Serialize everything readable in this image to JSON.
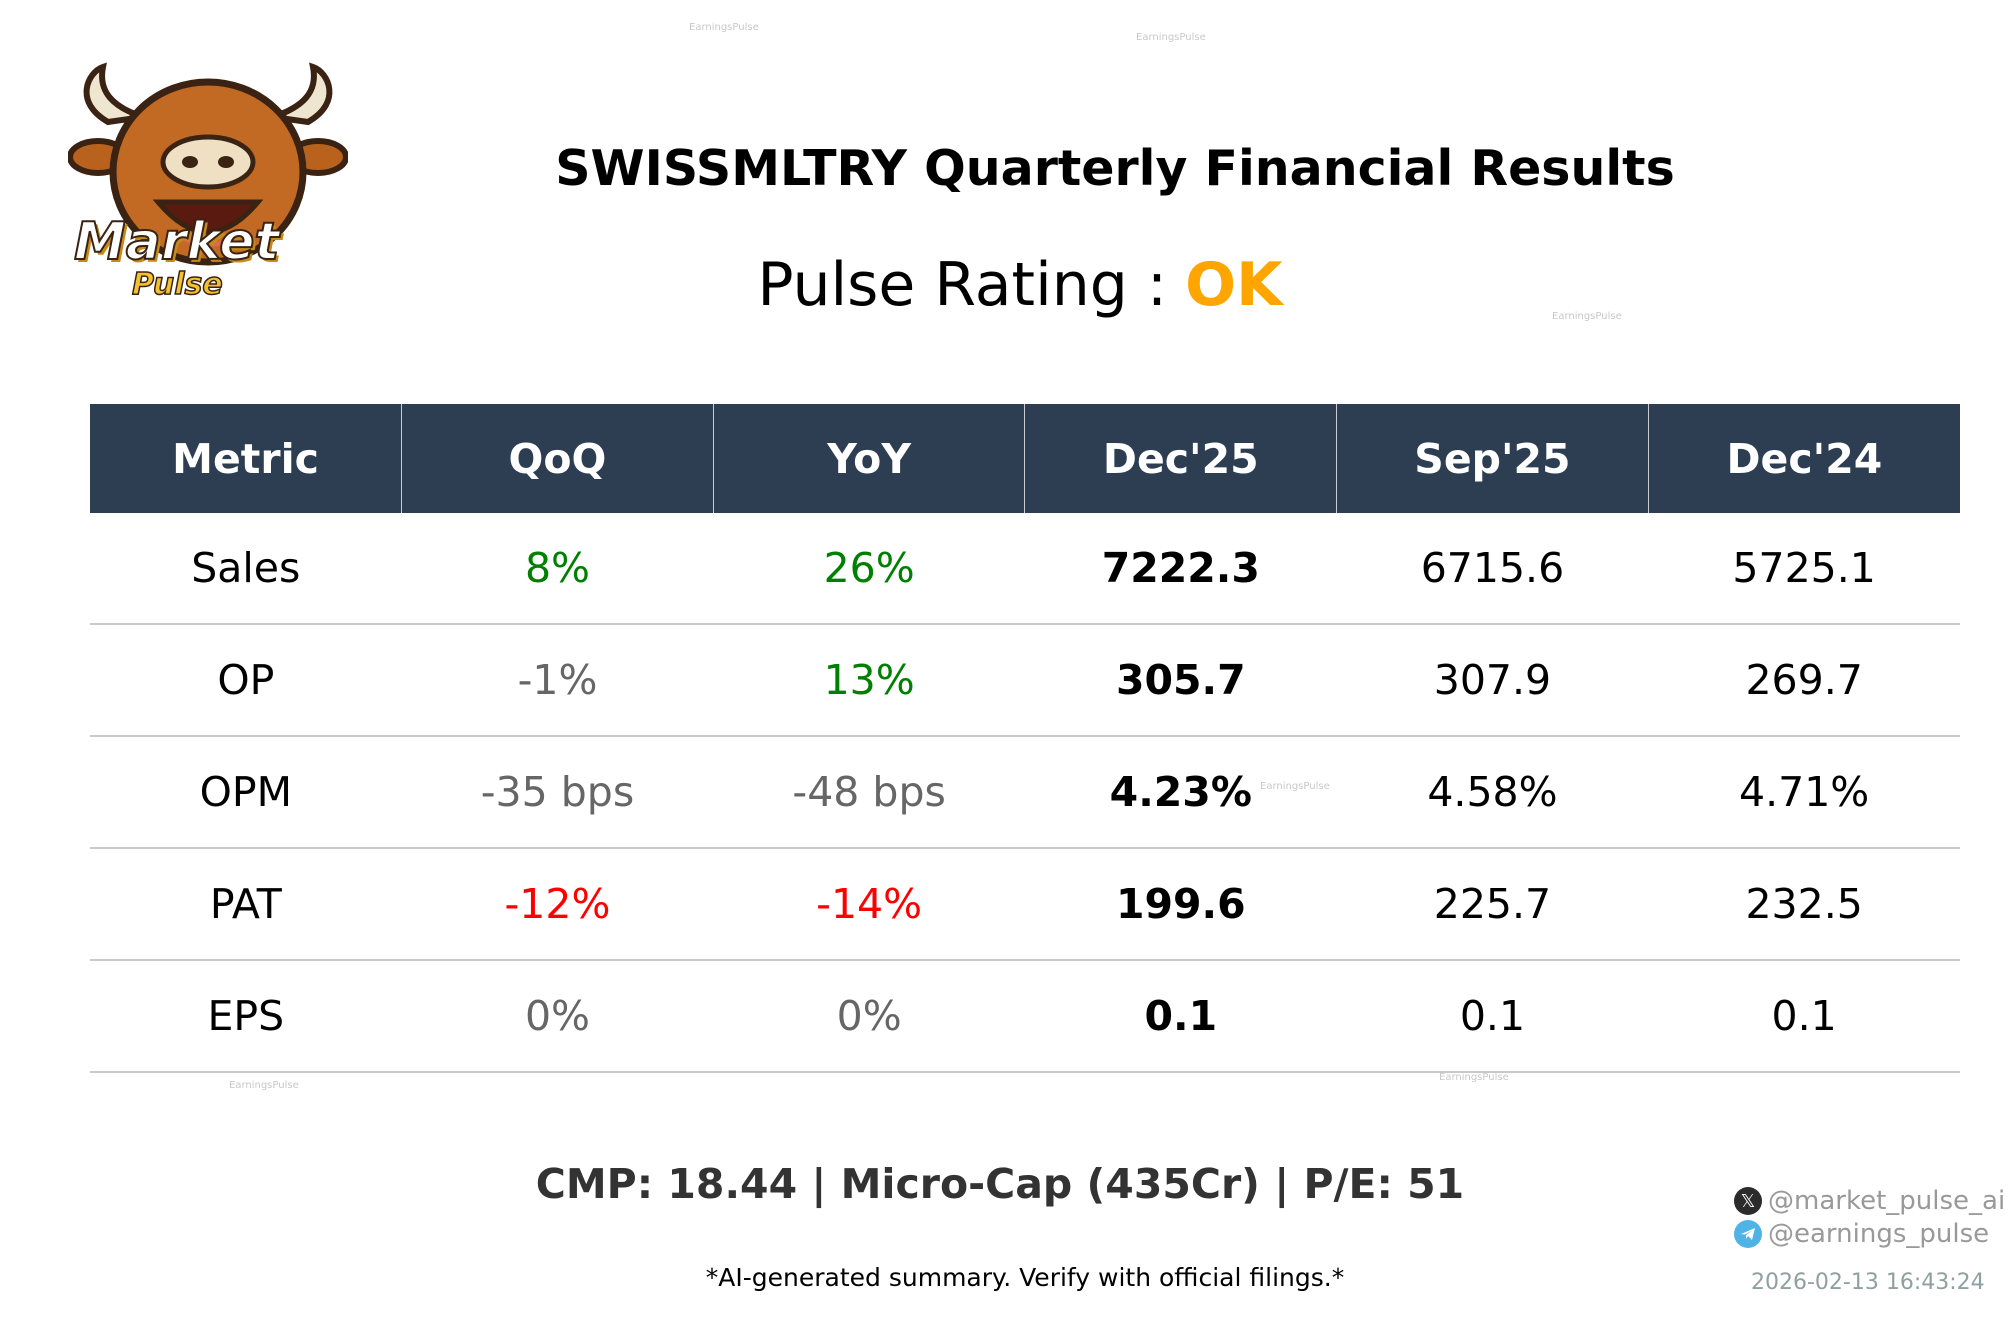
{
  "logo": {
    "text_line1": "Market",
    "text_line2": "Pulse"
  },
  "title": "SWISSMLTRY Quarterly Financial Results",
  "rating": {
    "label": "Pulse Rating :",
    "value": "OK",
    "color": "#FFA500"
  },
  "table": {
    "headers": [
      "Metric",
      "QoQ",
      "YoY",
      "Dec'25",
      "Sep'25",
      "Dec'24"
    ],
    "header_bg": "#2e3e52",
    "rows": [
      {
        "metric": "Sales",
        "qoq": "8%",
        "qoq_color": "#008000",
        "yoy": "26%",
        "yoy_color": "#008000",
        "dec25": "7222.3",
        "sep25": "6715.6",
        "dec24": "5725.1"
      },
      {
        "metric": "OP",
        "qoq": "-1%",
        "qoq_color": "#666666",
        "yoy": "13%",
        "yoy_color": "#008000",
        "dec25": "305.7",
        "sep25": "307.9",
        "dec24": "269.7"
      },
      {
        "metric": "OPM",
        "qoq": "-35 bps",
        "qoq_color": "#666666",
        "yoy": "-48 bps",
        "yoy_color": "#666666",
        "dec25": "4.23%",
        "sep25": "4.58%",
        "dec24": "4.71%"
      },
      {
        "metric": "PAT",
        "qoq": "-12%",
        "qoq_color": "#ff0000",
        "yoy": "-14%",
        "yoy_color": "#ff0000",
        "dec25": "199.6",
        "sep25": "225.7",
        "dec24": "232.5"
      },
      {
        "metric": "EPS",
        "qoq": "0%",
        "qoq_color": "#666666",
        "yoy": "0%",
        "yoy_color": "#666666",
        "dec25": "0.1",
        "sep25": "0.1",
        "dec24": "0.1"
      }
    ]
  },
  "footer": {
    "cmp": "CMP: 18.44 | Micro-Cap (435Cr) | P/E: 51",
    "disclaimer": "*AI-generated summary. Verify with official filings.*",
    "x_handle": "@market_pulse_ai",
    "telegram_handle": "@earnings_pulse",
    "timestamp": "2026-02-13 16:43:24"
  },
  "watermark": "EarningsPulse"
}
